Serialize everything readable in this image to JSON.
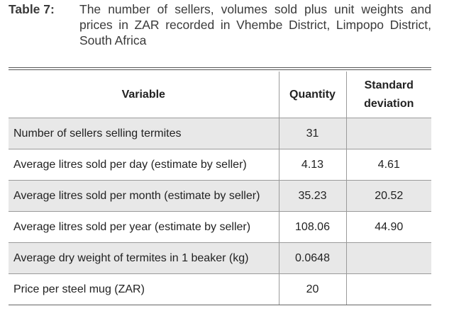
{
  "caption": {
    "label": "Table 7:",
    "text": "The number of sellers, volumes sold plus unit weights and prices in ZAR recorded in Vhembe District, Limpopo District, South Africa"
  },
  "table": {
    "headers": {
      "variable": "Variable",
      "quantity": "Quantity",
      "sd_line1": "Standard",
      "sd_line2": "deviation"
    },
    "rows": [
      {
        "variable": "Number of sellers selling termites",
        "quantity": "31",
        "sd": ""
      },
      {
        "variable": "Average litres sold per day (estimate by seller)",
        "quantity": "4.13",
        "sd": "4.61"
      },
      {
        "variable": "Average litres sold per month (estimate by seller)",
        "quantity": "35.23",
        "sd": "20.52"
      },
      {
        "variable": "Average litres sold per year (estimate by seller)",
        "quantity": "108.06",
        "sd": "44.90"
      },
      {
        "variable": "Average dry weight of termites in 1 beaker (kg)",
        "quantity": "0.0648",
        "sd": ""
      },
      {
        "variable": "Price per steel mug (ZAR)",
        "quantity": "20",
        "sd": ""
      }
    ]
  }
}
